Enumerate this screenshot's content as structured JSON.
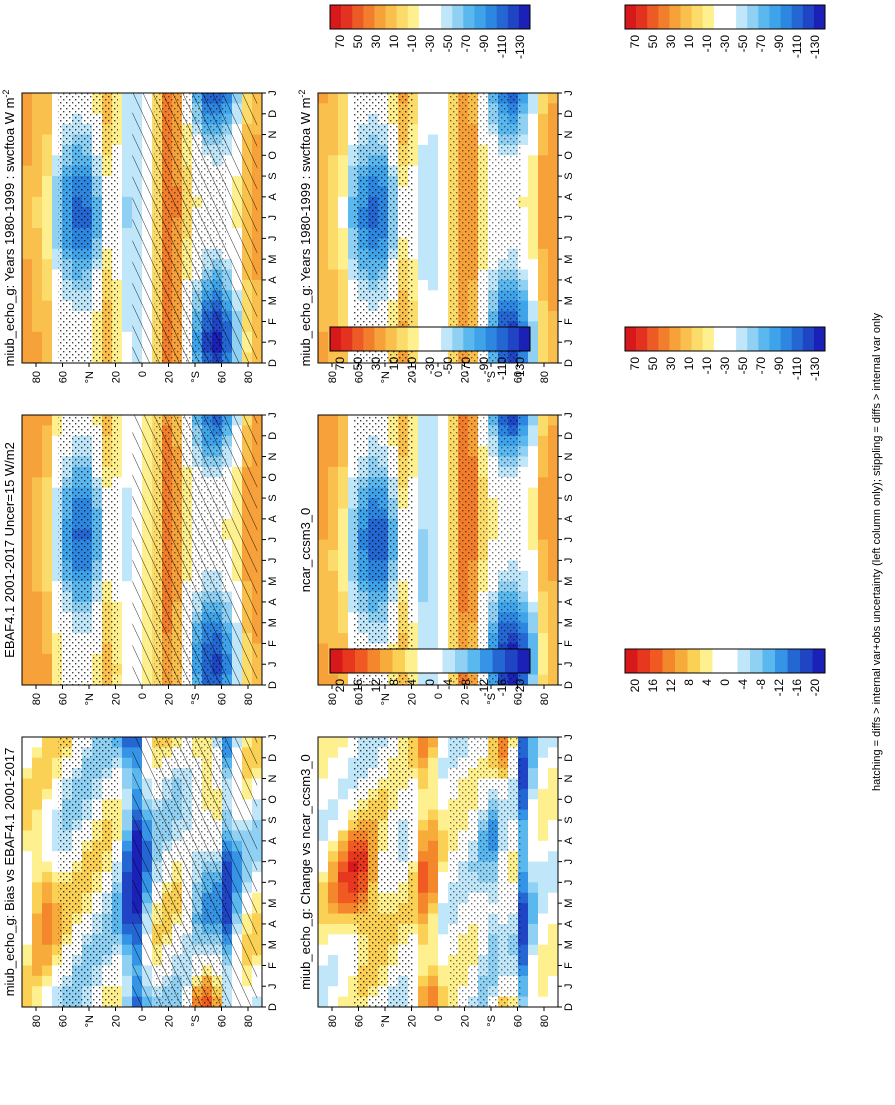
{
  "figure": {
    "footnote": "hatching = diffs > internal var+obs uncertainty (left column only); stippling = diffs > internal var only",
    "month_ticks": [
      "D",
      "J",
      "F",
      "M",
      "A",
      "M",
      "J",
      "J",
      "A",
      "S",
      "O",
      "N",
      "D",
      "J"
    ],
    "lat_ticks": [
      "80",
      "60",
      "°N",
      "20",
      "0",
      "20",
      "°S",
      "60",
      "80"
    ]
  },
  "chart_data": [
    {
      "type": "heatmap",
      "panel": "top-left",
      "title": "miub_echo_g: Years 1980-1999 : swcftoa W m",
      "title_superscript": "-2",
      "xlabel": "",
      "ylabel": "",
      "colorbar_ticks": [
        "70",
        "50",
        "30",
        "10",
        "-10",
        "-30",
        "-50",
        "-70",
        "-90",
        "-110",
        "-130"
      ],
      "value_range": [
        -140,
        80
      ],
      "overlay": "hatching and stippling"
    },
    {
      "type": "heatmap",
      "panel": "top-right",
      "title": "miub_echo_g: Years 1980-1999 : swcftoa W m",
      "title_superscript": "-2",
      "colorbar_ticks": [
        "70",
        "50",
        "30",
        "10",
        "-10",
        "-30",
        "-50",
        "-70",
        "-90",
        "-110",
        "-130"
      ],
      "value_range": [
        -140,
        80
      ],
      "overlay": "stippling"
    },
    {
      "type": "heatmap",
      "panel": "middle-left",
      "title": "EBAF4.1 2001-2017 Uncer=15 W/m2",
      "colorbar_ticks": [
        "70",
        "50",
        "30",
        "10",
        "-10",
        "-30",
        "-50",
        "-70",
        "-90",
        "-110",
        "-130"
      ],
      "value_range": [
        -140,
        80
      ],
      "overlay": "hatching and stippling"
    },
    {
      "type": "heatmap",
      "panel": "middle-right",
      "title": "ncar_ccsm3_0",
      "colorbar_ticks": [
        "70",
        "50",
        "30",
        "10",
        "-10",
        "-30",
        "-50",
        "-70",
        "-90",
        "-110",
        "-130"
      ],
      "value_range": [
        -140,
        80
      ],
      "overlay": "stippling"
    },
    {
      "type": "heatmap",
      "panel": "bottom-left",
      "title": "miub_echo_g: Bias vs EBAF4.1 2001-2017",
      "colorbar_ticks": [
        "20",
        "16",
        "12",
        "8",
        "4",
        "0",
        "-4",
        "-8",
        "-12",
        "-16",
        "-20"
      ],
      "value_range": [
        -22,
        22
      ],
      "overlay": "hatching and stippling"
    },
    {
      "type": "heatmap",
      "panel": "bottom-right",
      "title": "miub_echo_g: Change vs ncar_ccsm3_0",
      "colorbar_ticks": [
        "20",
        "16",
        "12",
        "8",
        "4",
        "0",
        "-4",
        "-8",
        "-12",
        "-16",
        "-20"
      ],
      "value_range": [
        -22,
        22
      ],
      "overlay": "stippling"
    }
  ],
  "colors": {
    "full": [
      "#d7191c",
      "#e33320",
      "#ec5a26",
      "#f27d2c",
      "#f6a13a",
      "#f9c04e",
      "#fbdc6a",
      "#fef08e",
      "#ffffff",
      "#ffffff",
      "#bfe6f9",
      "#8fd0f3",
      "#5bb8ef",
      "#3fa3ea",
      "#2d86df",
      "#2467d3",
      "#1f45c4",
      "#1b21b7"
    ],
    "diff": [
      "#d7191c",
      "#e8371f",
      "#f05a22",
      "#f4862b",
      "#f7ab3a",
      "#fad055",
      "#fef08e",
      "#ffffff",
      "#ffffff",
      "#bfe6f9",
      "#8fd0f3",
      "#5bb8ef",
      "#3694e7",
      "#2467d3",
      "#1f45c4",
      "#1b21b7"
    ]
  }
}
